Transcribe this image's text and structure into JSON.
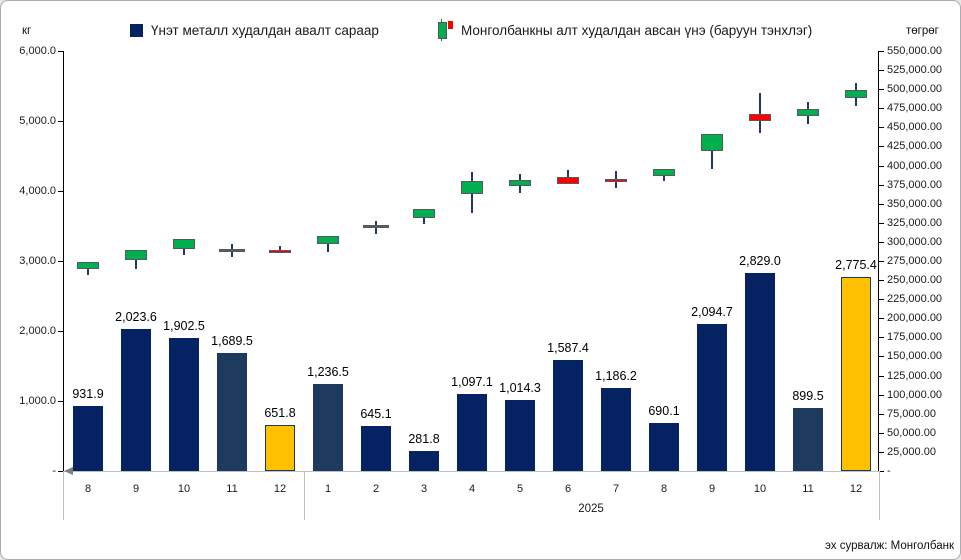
{
  "axes_units": {
    "left": "кг",
    "right": "төгрөг"
  },
  "legend": {
    "items": [
      {
        "label": "Үнэт металл худалдан авалт сараар",
        "marker": "bar-square",
        "color": "#052363"
      },
      {
        "label": "Монголбанкны алт худалдан авсан үнэ (баруун тэнхлэг)",
        "marker": "candlestick",
        "up_color": "#00b050",
        "down_color": "#ff0000"
      }
    ]
  },
  "source_note": "эх сурвалж: Монголбанк",
  "colors": {
    "navy": "#052363",
    "slate": "#1f3a5f",
    "gold": "#ffc000",
    "gold_border": "#1f3864",
    "green": "#00b050",
    "red": "#ff0000",
    "candle_border": "#595959",
    "doji": "#595959",
    "wick": "#1f3864",
    "axis_dark": "#000000",
    "axis_light": "#bfbfbf"
  },
  "chart_data": {
    "type": "combo",
    "subtypes": [
      "bar",
      "candlestick"
    ],
    "categories": [
      "8",
      "9",
      "10",
      "11",
      "12",
      "1",
      "2",
      "3",
      "4",
      "5",
      "6",
      "7",
      "8",
      "9",
      "10",
      "11",
      "12"
    ],
    "groups": [
      {
        "label": "",
        "from": 0,
        "to": 4
      },
      {
        "label": "2025",
        "from": 5,
        "to": 16
      }
    ],
    "left_axis": {
      "unit": "кг",
      "min": 0,
      "max": 6000,
      "step": 1000,
      "ticks": [
        {
          "v": 6000,
          "label": "6,000.0"
        },
        {
          "v": 5000,
          "label": "5,000.0"
        },
        {
          "v": 4000,
          "label": "4,000.0"
        },
        {
          "v": 3000,
          "label": "3,000.0"
        },
        {
          "v": 2000,
          "label": "2,000.0"
        },
        {
          "v": 1000,
          "label": "1,000.0"
        },
        {
          "v": 0,
          "label": "-"
        }
      ]
    },
    "right_axis": {
      "unit": "төгрөг",
      "min": 0,
      "max": 550000,
      "step": 25000,
      "ticks": [
        {
          "v": 550000,
          "label": "550,000.00"
        },
        {
          "v": 525000,
          "label": "525,000.00"
        },
        {
          "v": 500000,
          "label": "500,000.00"
        },
        {
          "v": 475000,
          "label": "475,000.00"
        },
        {
          "v": 450000,
          "label": "450,000.00"
        },
        {
          "v": 425000,
          "label": "425,000.00"
        },
        {
          "v": 400000,
          "label": "400,000.00"
        },
        {
          "v": 375000,
          "label": "375,000.00"
        },
        {
          "v": 350000,
          "label": "350,000.00"
        },
        {
          "v": 325000,
          "label": "325,000.00"
        },
        {
          "v": 300000,
          "label": "300,000.00"
        },
        {
          "v": 275000,
          "label": "275,000.00"
        },
        {
          "v": 250000,
          "label": "250,000.00"
        },
        {
          "v": 225000,
          "label": "225,000.00"
        },
        {
          "v": 200000,
          "label": "200,000.00"
        },
        {
          "v": 175000,
          "label": "175,000.00"
        },
        {
          "v": 150000,
          "label": "150,000.00"
        },
        {
          "v": 125000,
          "label": "125,000.00"
        },
        {
          "v": 100000,
          "label": "100,000.00"
        },
        {
          "v": 75000,
          "label": "75,000.00"
        },
        {
          "v": 50000,
          "label": "50,000.00"
        },
        {
          "v": 25000,
          "label": "25,000.00"
        },
        {
          "v": 0,
          "label": "-"
        }
      ]
    },
    "series": [
      {
        "name": "Үнэт металл худалдан авалт сараар",
        "type": "bar",
        "axis": "left",
        "points": [
          {
            "month": "8",
            "value": 931.9,
            "label": "931.9",
            "color": "navy"
          },
          {
            "month": "9",
            "value": 2023.6,
            "label": "2,023.6",
            "color": "navy"
          },
          {
            "month": "10",
            "value": 1902.5,
            "label": "1,902.5",
            "color": "navy"
          },
          {
            "month": "11",
            "value": 1689.5,
            "label": "1,689.5",
            "color": "slate"
          },
          {
            "month": "12",
            "value": 651.8,
            "label": "651.8",
            "color": "gold"
          },
          {
            "month": "1",
            "value": 1236.5,
            "label": "1,236.5",
            "color": "slate"
          },
          {
            "month": "2",
            "value": 645.1,
            "label": "645.1",
            "color": "navy"
          },
          {
            "month": "3",
            "value": 281.8,
            "label": "281.8",
            "color": "navy"
          },
          {
            "month": "4",
            "value": 1097.1,
            "label": "1,097.1",
            "color": "navy"
          },
          {
            "month": "5",
            "value": 1014.3,
            "label": "1,014.3",
            "color": "navy"
          },
          {
            "month": "6",
            "value": 1587.4,
            "label": "1,587.4",
            "color": "navy"
          },
          {
            "month": "7",
            "value": 1186.2,
            "label": "1,186.2",
            "color": "navy"
          },
          {
            "month": "8",
            "value": 690.1,
            "label": "690.1",
            "color": "navy"
          },
          {
            "month": "9",
            "value": 2094.7,
            "label": "2,094.7",
            "color": "navy"
          },
          {
            "month": "10",
            "value": 2829.0,
            "label": "2,829.0",
            "color": "navy"
          },
          {
            "month": "11",
            "value": 899.5,
            "label": "899.5",
            "color": "slate"
          },
          {
            "month": "12",
            "value": 2775.4,
            "label": "2,775.4",
            "color": "gold"
          }
        ]
      },
      {
        "name": "Монголбанкны алт худалдан авсан үнэ (баруун тэнхлэг)",
        "type": "candlestick",
        "axis": "right",
        "points": [
          {
            "month": "8",
            "open": 264000,
            "high": 274000,
            "low": 257000,
            "close": 274000,
            "direction": "up"
          },
          {
            "month": "9",
            "open": 276000,
            "high": 289000,
            "low": 264000,
            "close": 289000,
            "direction": "up"
          },
          {
            "month": "10",
            "open": 291000,
            "high": 304000,
            "low": 283000,
            "close": 304000,
            "direction": "up"
          },
          {
            "month": "11",
            "open": 289000,
            "high": 297000,
            "low": 280000,
            "close": 289000,
            "direction": "doji"
          },
          {
            "month": "12",
            "open": 289000,
            "high": 295000,
            "low": 285000,
            "close": 285000,
            "direction": "down"
          },
          {
            "month": "1",
            "open": 297000,
            "high": 308000,
            "low": 287000,
            "close": 308000,
            "direction": "up"
          },
          {
            "month": "2",
            "open": 320000,
            "high": 327000,
            "low": 310000,
            "close": 320000,
            "direction": "doji"
          },
          {
            "month": "3",
            "open": 331000,
            "high": 343000,
            "low": 323000,
            "close": 343000,
            "direction": "up"
          },
          {
            "month": "4",
            "open": 363000,
            "high": 391000,
            "low": 338000,
            "close": 380000,
            "direction": "up"
          },
          {
            "month": "5",
            "open": 373000,
            "high": 389000,
            "low": 364000,
            "close": 381000,
            "direction": "up"
          },
          {
            "month": "6",
            "open": 385000,
            "high": 394000,
            "low": 376000,
            "close": 376000,
            "direction": "down"
          },
          {
            "month": "7",
            "open": 382000,
            "high": 393000,
            "low": 371000,
            "close": 378000,
            "direction": "down"
          },
          {
            "month": "8",
            "open": 386000,
            "high": 395000,
            "low": 380000,
            "close": 395000,
            "direction": "up"
          },
          {
            "month": "9",
            "open": 419000,
            "high": 441000,
            "low": 395000,
            "close": 441000,
            "direction": "up"
          },
          {
            "month": "10",
            "open": 467000,
            "high": 495000,
            "low": 443000,
            "close": 458000,
            "direction": "down"
          },
          {
            "month": "11",
            "open": 465000,
            "high": 483000,
            "low": 454000,
            "close": 474000,
            "direction": "up"
          },
          {
            "month": "12",
            "open": 488000,
            "high": 508000,
            "low": 478000,
            "close": 499000,
            "direction": "up"
          }
        ]
      }
    ]
  }
}
